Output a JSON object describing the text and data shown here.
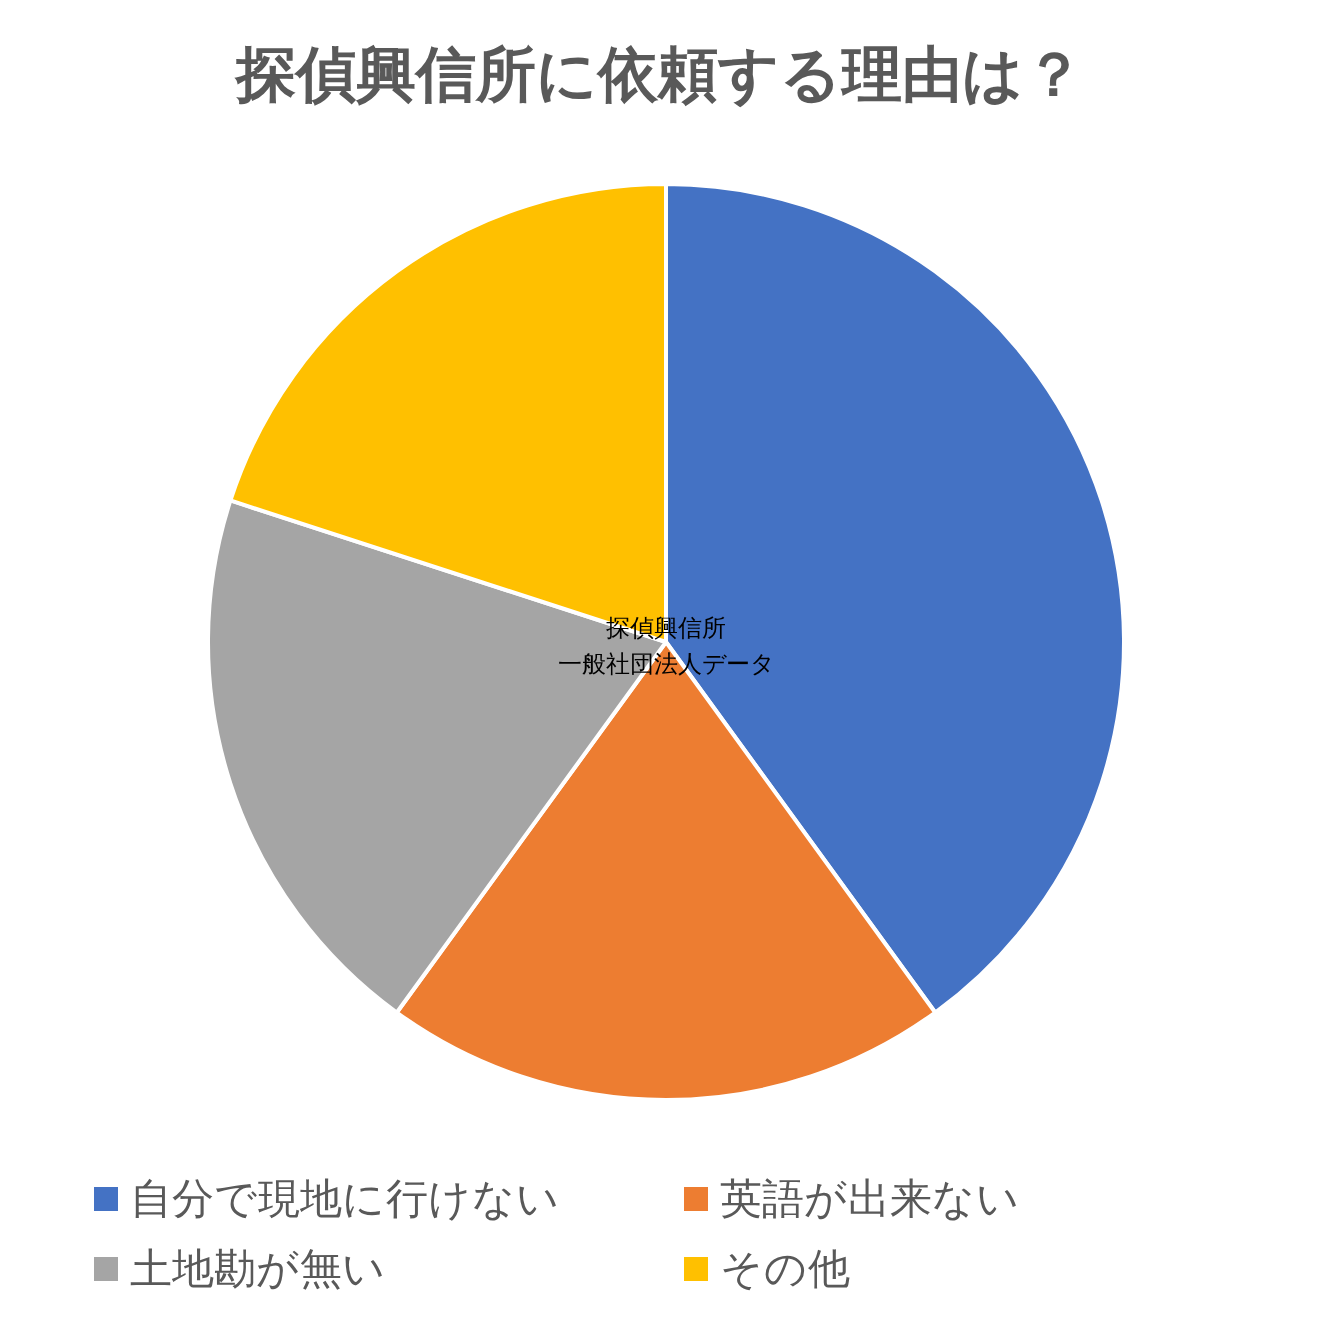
{
  "chart_data": {
    "type": "pie",
    "title": "探偵興信所に依頼する理由は？",
    "categories": [
      "自分で現地に行けない",
      "英語が出来ない",
      "土地勘が無い",
      "その他"
    ],
    "values": [
      40,
      20,
      20,
      20
    ],
    "colors": [
      "#4472c4",
      "#ed7d31",
      "#a5a5a5",
      "#ffc000"
    ],
    "legend": "bottom",
    "annotations": [
      "探偵興信所",
      "一般社団法人データ"
    ]
  }
}
